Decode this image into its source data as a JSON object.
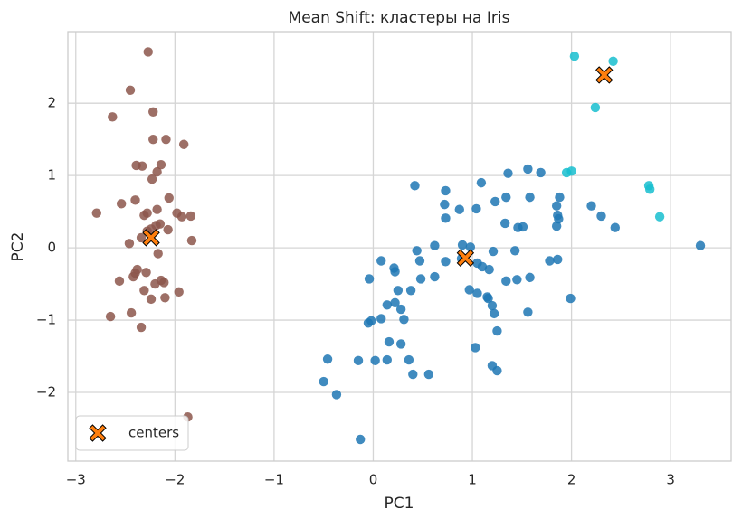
{
  "chart_data": {
    "type": "scatter",
    "title": "Mean Shift: кластеры на Iris",
    "x_label": "PC1",
    "y_label": "PC2",
    "xlim": [
      -3.08,
      3.61
    ],
    "ylim": [
      -2.95,
      2.99
    ],
    "xticks": [
      {
        "value": -3,
        "label": "−3"
      },
      {
        "value": -2,
        "label": "−2"
      },
      {
        "value": -1,
        "label": "−1"
      },
      0,
      1,
      2,
      3
    ],
    "yticks": [
      {
        "value": -2,
        "label": "−2"
      },
      {
        "value": -1,
        "label": "−1"
      },
      0,
      1,
      2
    ],
    "grid": true,
    "legend_loc": "lower left",
    "series": [
      {
        "color": "#8c564b",
        "marker": "circle",
        "x": [
          -2.27,
          -2.45,
          -2.63,
          -2.22,
          -2.22,
          -2.09,
          -1.91,
          -2.39,
          -2.14,
          -2.33,
          -2.18,
          -2.23,
          -2.06,
          -2.4,
          -2.79,
          -2.54,
          -2.28,
          -2.18,
          -2.31,
          -1.98,
          -1.93,
          -1.84,
          -2.19,
          -2.15,
          -2.24,
          -2.07,
          -2.34,
          -2.28,
          -1.83,
          -2.46,
          -2.17,
          -2.38,
          -2.29,
          -2.4,
          -2.42,
          -2.56,
          -2.14,
          -2.2,
          -2.11,
          -2.31,
          -1.96,
          -2.24,
          -2.1,
          -2.44,
          -2.65,
          -2.34,
          -1.87
        ],
        "y": [
          2.71,
          2.18,
          1.81,
          1.88,
          1.5,
          1.5,
          1.43,
          1.14,
          1.15,
          1.13,
          1.05,
          0.95,
          0.69,
          0.66,
          0.48,
          0.61,
          0.48,
          0.53,
          0.45,
          0.48,
          0.43,
          0.44,
          0.31,
          0.33,
          0.26,
          0.25,
          0.14,
          0.23,
          0.1,
          0.06,
          -0.08,
          -0.3,
          -0.34,
          -0.35,
          -0.4,
          -0.46,
          -0.45,
          -0.5,
          -0.48,
          -0.59,
          -0.61,
          -0.71,
          -0.69,
          -0.9,
          -0.95,
          -1.1,
          -2.34
        ]
      },
      {
        "color": "#1f77b4",
        "marker": "circle",
        "x": [
          0.42,
          0.73,
          1.09,
          1.36,
          1.56,
          1.69,
          0.72,
          0.87,
          1.04,
          1.23,
          1.34,
          1.58,
          1.88,
          1.85,
          2.2,
          2.3,
          2.44,
          0.73,
          1.33,
          1.46,
          1.51,
          1.86,
          1.87,
          1.85,
          0.9,
          0.98,
          1.21,
          1.43,
          0.62,
          0.44,
          0.08,
          0.21,
          0.22,
          0.47,
          0.73,
          0.89,
          1.05,
          1.1,
          1.17,
          1.34,
          1.45,
          1.58,
          1.78,
          1.86,
          -0.04,
          0.25,
          0.38,
          0.48,
          0.62,
          0.97,
          1.05,
          1.15,
          1.16,
          1.2,
          1.22,
          1.56,
          1.99,
          3.3,
          0.14,
          0.22,
          0.28,
          0.31,
          0.08,
          -0.02,
          -0.05,
          0.16,
          0.28,
          1.03,
          1.25,
          -0.46,
          -0.15,
          0.02,
          0.14,
          0.36,
          0.4,
          0.56,
          1.2,
          1.25,
          -0.5,
          -0.37,
          -0.13
        ],
        "y": [
          0.86,
          0.79,
          0.9,
          1.03,
          1.09,
          1.04,
          0.6,
          0.53,
          0.54,
          0.64,
          0.7,
          0.7,
          0.7,
          0.58,
          0.58,
          0.44,
          0.28,
          0.41,
          0.34,
          0.28,
          0.29,
          0.45,
          0.4,
          0.3,
          0.04,
          0.01,
          -0.05,
          -0.04,
          0.03,
          -0.04,
          -0.18,
          -0.28,
          -0.33,
          -0.18,
          -0.19,
          -0.15,
          -0.21,
          -0.26,
          -0.3,
          -0.46,
          -0.44,
          -0.41,
          -0.18,
          -0.16,
          -0.43,
          -0.59,
          -0.59,
          -0.43,
          -0.4,
          -0.58,
          -0.63,
          -0.68,
          -0.7,
          -0.8,
          -0.91,
          -0.89,
          -0.7,
          0.03,
          -0.79,
          -0.76,
          -0.85,
          -0.99,
          -0.98,
          -1.01,
          -1.04,
          -1.3,
          -1.33,
          -1.38,
          -1.15,
          -1.54,
          -1.56,
          -1.56,
          -1.55,
          -1.55,
          -1.75,
          -1.75,
          -1.63,
          -1.7,
          -1.85,
          -2.03,
          -2.65
        ]
      },
      {
        "color": "#17becf",
        "marker": "circle",
        "x": [
          2.03,
          2.42,
          2.24,
          1.95,
          2.0,
          2.78,
          2.79,
          2.89
        ],
        "y": [
          2.65,
          2.58,
          1.94,
          1.04,
          1.06,
          0.86,
          0.81,
          0.43
        ]
      },
      {
        "name": "centers",
        "color": "#ff7f0e",
        "marker": "X",
        "x": [
          -2.24,
          0.93,
          2.33
        ],
        "y": [
          0.14,
          -0.14,
          2.39
        ]
      }
    ]
  }
}
